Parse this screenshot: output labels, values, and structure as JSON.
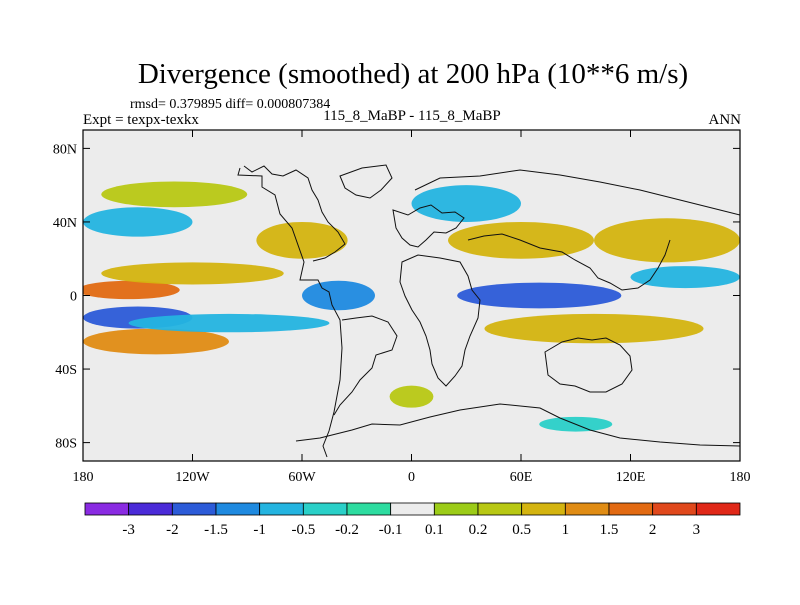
{
  "chart_data": {
    "type": "heatmap",
    "title": "Divergence (smoothed) at 200 hPa (10**6 m/s)",
    "stats": "rmsd= 0.379895 diff= 0.000807384",
    "left_label": "Expt = texpx-texkx",
    "center_label": "115_8_MaBP - 115_8_MaBP",
    "right_label": "ANN",
    "xlabel": "",
    "ylabel": "",
    "x_ticks": [
      {
        "value": -180,
        "label": "180"
      },
      {
        "value": -120,
        "label": "120W"
      },
      {
        "value": -60,
        "label": "60W"
      },
      {
        "value": 0,
        "label": "0"
      },
      {
        "value": 60,
        "label": "60E"
      },
      {
        "value": 120,
        "label": "120E"
      },
      {
        "value": 180,
        "label": "180"
      }
    ],
    "y_ticks": [
      {
        "value": 80,
        "label": "80N"
      },
      {
        "value": 40,
        "label": "40N"
      },
      {
        "value": 0,
        "label": "0"
      },
      {
        "value": -40,
        "label": "40S"
      },
      {
        "value": -80,
        "label": "80S"
      }
    ],
    "xlim": [
      -180,
      180
    ],
    "ylim": [
      -90,
      90
    ],
    "colorbar": {
      "colors": [
        "#8a2be2",
        "#4b2bd8",
        "#2c5bd8",
        "#1f8ae0",
        "#24b4e0",
        "#2ad0c8",
        "#2ddca0",
        "#ececec",
        "#9ccc18",
        "#b8c814",
        "#d4b410",
        "#e08c14",
        "#e26a12",
        "#e0481c",
        "#e02818"
      ],
      "labels": [
        "-3",
        "-2",
        "-1.5",
        "-1",
        "-0.5",
        "-0.2",
        "-0.1",
        "0.1",
        "0.2",
        "0.5",
        "1",
        "1.5",
        "2",
        "3"
      ]
    },
    "field_regions": [
      {
        "lon": -155,
        "lat": 3,
        "rx": 28,
        "ry": 5,
        "level": "1.5"
      },
      {
        "lon": -150,
        "lat": -12,
        "rx": 30,
        "ry": 6,
        "level": "-1.5"
      },
      {
        "lon": -140,
        "lat": -25,
        "rx": 40,
        "ry": 7,
        "level": "1"
      },
      {
        "lon": -120,
        "lat": 12,
        "rx": 50,
        "ry": 6,
        "level": "0.5"
      },
      {
        "lon": -100,
        "lat": -15,
        "rx": 55,
        "ry": 5,
        "level": "-0.5"
      },
      {
        "lon": -130,
        "lat": 55,
        "rx": 40,
        "ry": 7,
        "level": "0.2"
      },
      {
        "lon": -150,
        "lat": 40,
        "rx": 30,
        "ry": 8,
        "level": "-0.5"
      },
      {
        "lon": -60,
        "lat": 30,
        "rx": 25,
        "ry": 10,
        "level": "0.5"
      },
      {
        "lon": -40,
        "lat": 0,
        "rx": 20,
        "ry": 8,
        "level": "-1"
      },
      {
        "lon": 30,
        "lat": 50,
        "rx": 30,
        "ry": 10,
        "level": "-0.5"
      },
      {
        "lon": 60,
        "lat": 30,
        "rx": 40,
        "ry": 10,
        "level": "0.5"
      },
      {
        "lon": 70,
        "lat": 0,
        "rx": 45,
        "ry": 7,
        "level": "-1.5"
      },
      {
        "lon": 100,
        "lat": -18,
        "rx": 60,
        "ry": 8,
        "level": "0.5"
      },
      {
        "lon": 140,
        "lat": 30,
        "rx": 40,
        "ry": 12,
        "level": "0.5"
      },
      {
        "lon": 150,
        "lat": 10,
        "rx": 30,
        "ry": 6,
        "level": "-0.5"
      },
      {
        "lon": 0,
        "lat": -55,
        "rx": 12,
        "ry": 6,
        "level": "0.2"
      },
      {
        "lon": 90,
        "lat": -70,
        "rx": 20,
        "ry": 4,
        "level": "-0.2"
      }
    ]
  }
}
